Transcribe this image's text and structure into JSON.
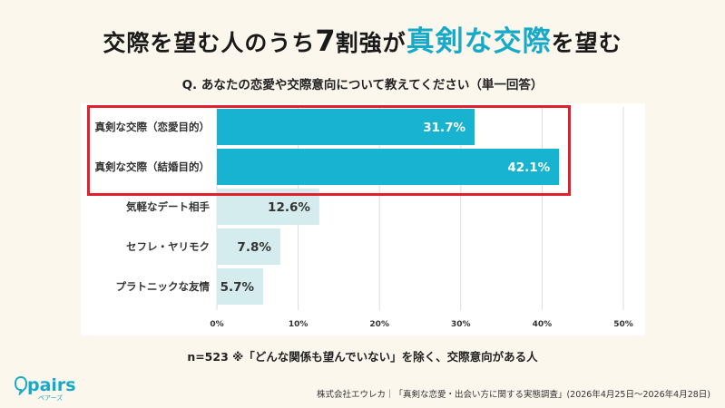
{
  "headline": {
    "part1": "交際を望む人のうち",
    "part2": "7",
    "part3": "割強が",
    "part4": "真剣な交際",
    "part5": "を望む"
  },
  "question": "Q. あなたの恋愛や交際意向について教えてください（単一回答）",
  "note": "n=523 ※「どんな関係も望んでいない」を除く、交際意向がある人",
  "brand": {
    "name": "pairs",
    "sub": "ペアーズ"
  },
  "credit": "株式会社エウレカ｜「真剣な恋愛・出会い方に関する実態調査」(2026年4月25日〜2026年4月28日)",
  "colors": {
    "highlight_bar": "#17b3d0",
    "normal_bar": "#d5ecee",
    "highlight_border": "#e0202c",
    "accent_text": "#17a9c8"
  },
  "chart_data": {
    "type": "bar",
    "orientation": "horizontal",
    "categories": [
      "真剣な交際（恋愛目的）",
      "真剣な交際（結婚目的）",
      "気軽なデート相手",
      "セフレ・ヤリモク",
      "プラトニックな友情"
    ],
    "values": [
      31.7,
      42.1,
      12.6,
      7.8,
      5.7
    ],
    "value_labels": [
      "31.7%",
      "42.1%",
      "12.6%",
      "7.8%",
      "5.7%"
    ],
    "highlighted": [
      true,
      true,
      false,
      false,
      false
    ],
    "xlim": [
      0,
      50
    ],
    "xticks": [
      0,
      10,
      20,
      30,
      40,
      50
    ],
    "tick_suffix": "%",
    "grid": true
  }
}
